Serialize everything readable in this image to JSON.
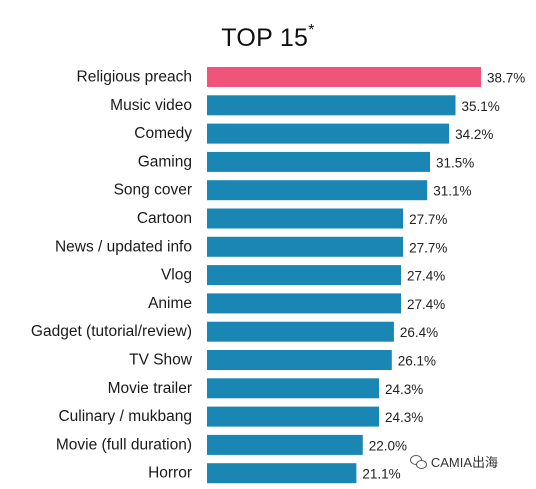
{
  "chart_data": {
    "type": "bar",
    "orientation": "horizontal",
    "title": "TOP 15",
    "title_mark": "*",
    "categories": [
      "Religious preach",
      "Music video",
      "Comedy",
      "Gaming",
      "Song cover",
      "Cartoon",
      "News / updated info",
      "Vlog",
      "Anime",
      "Gadget (tutorial/review)",
      "TV Show",
      "Movie trailer",
      "Culinary / mukbang",
      "Movie (full duration)",
      "Horror"
    ],
    "values": [
      38.7,
      35.1,
      34.2,
      31.5,
      31.1,
      27.7,
      27.7,
      27.4,
      27.4,
      26.4,
      26.1,
      24.3,
      24.3,
      22.0,
      21.1
    ],
    "value_labels": [
      "38.7%",
      "35.1%",
      "34.2%",
      "31.5%",
      "31.1%",
      "27.7%",
      "27.7%",
      "27.4%",
      "27.4%",
      "26.4%",
      "26.1%",
      "24.3%",
      "24.3%",
      "22.0%",
      "21.1%"
    ],
    "highlight_index": 0,
    "colors": {
      "highlight": "#f0547a",
      "bar": "#1a86b3"
    },
    "xlim": [
      0,
      38.7
    ],
    "grid": false,
    "legend": "none"
  },
  "watermark": {
    "text": "CAMIA出海",
    "icon": "wechat-icon"
  }
}
